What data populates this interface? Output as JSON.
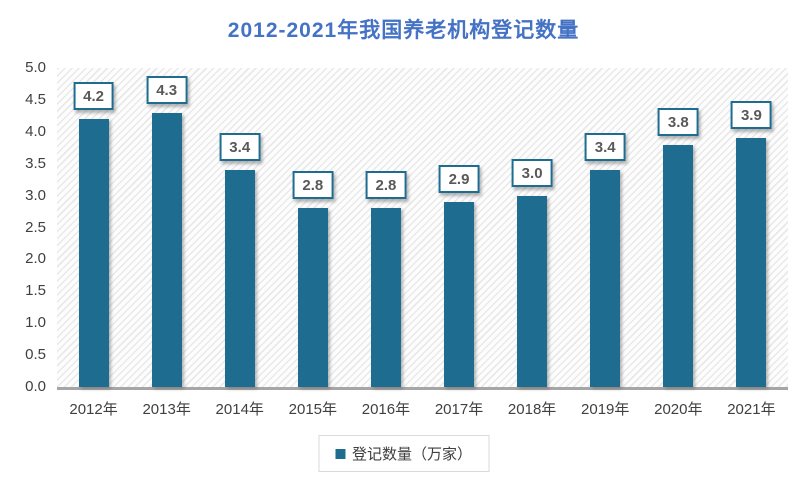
{
  "chart_data": {
    "type": "bar",
    "title": "2012-2021年我国养老机构登记数量",
    "categories": [
      "2012年",
      "2013年",
      "2014年",
      "2015年",
      "2016年",
      "2017年",
      "2018年",
      "2019年",
      "2020年",
      "2021年"
    ],
    "values": [
      4.2,
      4.3,
      3.4,
      2.8,
      2.8,
      2.9,
      3.0,
      3.4,
      3.8,
      3.9
    ],
    "display_values": [
      "4.2",
      "4.3",
      "3.4",
      "2.8",
      "2.8",
      "2.9",
      "3.0",
      "3.4",
      "3.8",
      "3.9"
    ],
    "series_name": "登记数量（万家）",
    "xlabel": "",
    "ylabel": "",
    "ylim": [
      0,
      5
    ],
    "ytick_labels": [
      "5.0",
      "4.5",
      "4.0",
      "3.5",
      "3.0",
      "2.5",
      "2.0",
      "1.5",
      "1.0",
      "0.5",
      "0.0"
    ],
    "grid": false,
    "legend_position": "bottom",
    "plot_background": "light-diagonal-hatch",
    "colors": {
      "bar": "#1e6d90",
      "title": "#4472c4",
      "value_label_text": "#595959",
      "value_label_border": "#1e6d90",
      "axis_text": "#404040",
      "axis_line": "#a6a6a6",
      "legend_border": "#d9d9d9"
    }
  }
}
